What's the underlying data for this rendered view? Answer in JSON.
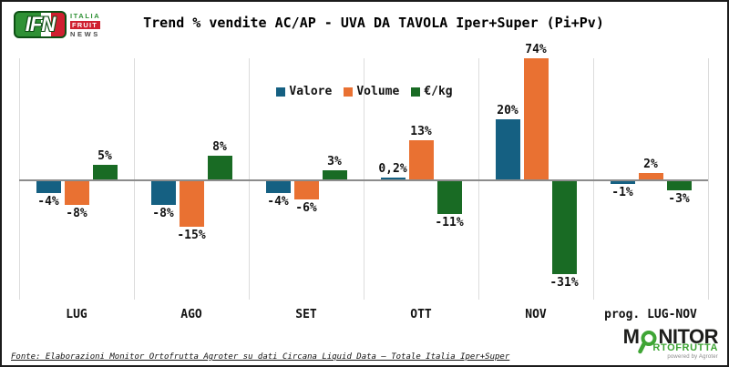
{
  "window": {
    "background": "#ffffff",
    "border_color": "#1c1c1c"
  },
  "header": {
    "logo": {
      "acronym": "IFN",
      "word1": "ITALIA",
      "word2": "FRUIT",
      "word3": "NEWS"
    },
    "title": "Trend % vendite AC/AP - UVA DA TAVOLA Iper+Super (Pi+Pv)"
  },
  "chart_data": {
    "type": "bar",
    "title": "Trend % vendite AC/AP - UVA DA TAVOLA Iper+Super (Pi+Pv)",
    "categories": [
      "LUG",
      "AGO",
      "SET",
      "OTT",
      "NOV",
      "prog. LUG-NOV"
    ],
    "series": [
      {
        "name": "Valore",
        "color": "#156082",
        "values": [
          -4,
          -8,
          -4,
          0.2,
          20,
          -1
        ],
        "labels": [
          "-4%",
          "-8%",
          "-4%",
          "0,2%",
          "20%",
          "-1%"
        ]
      },
      {
        "name": "Volume",
        "color": "#E97132",
        "values": [
          -8,
          -15,
          -6,
          13,
          74,
          2
        ],
        "labels": [
          "-8%",
          "-15%",
          "-6%",
          "13%",
          "74%",
          "2%"
        ]
      },
      {
        "name": "€/kg",
        "color": "#196B24",
        "values": [
          5,
          8,
          3,
          -11,
          -31,
          -3
        ],
        "labels": [
          "5%",
          "8%",
          "3%",
          "-11%",
          "-31%",
          "-3%"
        ]
      }
    ],
    "xlabel": "",
    "ylabel": "",
    "ylim": [
      -35,
      40
    ],
    "clip_note": "NOV Volume 74% bar is clipped at the plot top",
    "grid": "vertical category separators only",
    "legend_position": "top-center",
    "axis_color": "#8C8C8C",
    "grid_color": "#DCDCDC",
    "label_color": "#111111"
  },
  "footer": {
    "source": "Fonte: Elaborazioni Monitor Ortofrutta Agroter su dati Circana Liquid Data – Totale Italia Iper+Super"
  },
  "monitor_logo": {
    "part1": "M",
    "part2": "NITOR",
    "line2": "RTOFRUTTA",
    "powered": "powered by Agroter"
  }
}
